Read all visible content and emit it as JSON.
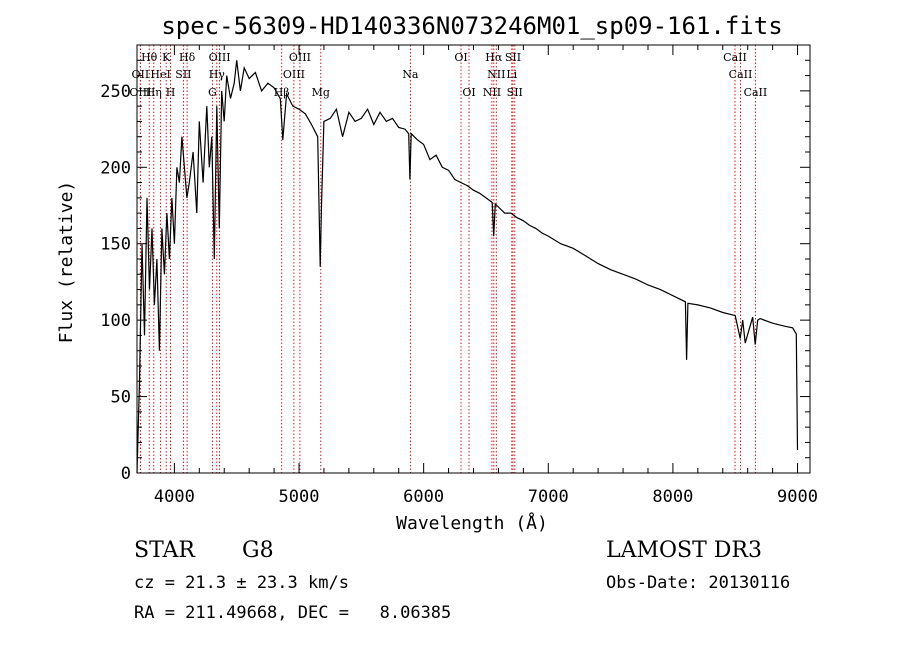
{
  "chart_data": {
    "type": "line",
    "title": "spec-56309-HD140336N073246M01_sp09-161.fits",
    "xlabel": "Wavelength (Å)",
    "ylabel": "Flux (relative)",
    "xlim": [
      3700,
      9100
    ],
    "ylim": [
      0,
      280
    ],
    "xticks": [
      4000,
      5000,
      6000,
      7000,
      8000,
      9000
    ],
    "yticks": [
      0,
      50,
      100,
      150,
      200,
      250
    ],
    "series": [
      {
        "name": "flux",
        "x": [
          3700,
          3720,
          3740,
          3760,
          3780,
          3800,
          3820,
          3840,
          3860,
          3880,
          3900,
          3920,
          3940,
          3960,
          3980,
          4000,
          4020,
          4040,
          4060,
          4080,
          4100,
          4120,
          4150,
          4180,
          4200,
          4230,
          4260,
          4280,
          4300,
          4320,
          4340,
          4360,
          4380,
          4400,
          4420,
          4450,
          4480,
          4500,
          4530,
          4560,
          4600,
          4650,
          4700,
          4750,
          4800,
          4850,
          4870,
          4900,
          4950,
          5000,
          5050,
          5100,
          5150,
          5170,
          5180,
          5200,
          5250,
          5300,
          5350,
          5400,
          5450,
          5500,
          5550,
          5600,
          5650,
          5700,
          5750,
          5800,
          5850,
          5880,
          5890,
          5900,
          5950,
          6000,
          6050,
          6100,
          6150,
          6200,
          6250,
          6300,
          6350,
          6400,
          6450,
          6500,
          6550,
          6562,
          6575,
          6600,
          6650,
          6700,
          6750,
          6800,
          6850,
          6900,
          6950,
          7000,
          7100,
          7200,
          7300,
          7400,
          7500,
          7600,
          7700,
          7800,
          7900,
          8000,
          8100,
          8110,
          8120,
          8200,
          8300,
          8400,
          8500,
          8540,
          8560,
          8580,
          8640,
          8660,
          8680,
          8700,
          8800,
          8900,
          8960,
          8990,
          9000
        ],
        "y": [
          0,
          60,
          150,
          90,
          180,
          120,
          160,
          110,
          140,
          80,
          160,
          130,
          170,
          140,
          180,
          150,
          200,
          190,
          220,
          200,
          180,
          190,
          210,
          170,
          230,
          190,
          240,
          200,
          220,
          140,
          240,
          160,
          250,
          230,
          260,
          245,
          255,
          270,
          250,
          265,
          258,
          262,
          250,
          255,
          252,
          245,
          218,
          248,
          240,
          238,
          235,
          228,
          220,
          135,
          175,
          230,
          232,
          238,
          220,
          236,
          230,
          232,
          238,
          228,
          236,
          230,
          232,
          226,
          225,
          222,
          192,
          222,
          218,
          215,
          205,
          208,
          200,
          198,
          192,
          190,
          188,
          185,
          183,
          180,
          177,
          155,
          176,
          174,
          170,
          170,
          167,
          165,
          162,
          160,
          157,
          155,
          150,
          147,
          142,
          137,
          133,
          130,
          127,
          123,
          120,
          116,
          112,
          74,
          111,
          110,
          108,
          105,
          103,
          88,
          100,
          85,
          102,
          84,
          100,
          101,
          98,
          96,
          95,
          91,
          15
        ]
      }
    ],
    "lines": [
      {
        "name": "Hθ",
        "wavelength": 3798
      },
      {
        "name": "OII",
        "wavelength": 3727
      },
      {
        "name": "OIII",
        "wavelength": 3727
      },
      {
        "name": "Hη",
        "wavelength": 3835
      },
      {
        "name": "HeI",
        "wavelength": 3889
      },
      {
        "name": "K",
        "wavelength": 3934
      },
      {
        "name": "H",
        "wavelength": 3969
      },
      {
        "name": "SII",
        "wavelength": 4072
      },
      {
        "name": "Hδ",
        "wavelength": 4102
      },
      {
        "name": "G",
        "wavelength": 4305
      },
      {
        "name": "Hγ",
        "wavelength": 4340
      },
      {
        "name": "OIII",
        "wavelength": 4363
      },
      {
        "name": "Hβ",
        "wavelength": 4861
      },
      {
        "name": "OIII",
        "wavelength": 4959
      },
      {
        "name": "OIII",
        "wavelength": 5007
      },
      {
        "name": "Mg",
        "wavelength": 5175
      },
      {
        "name": "Na",
        "wavelength": 5894
      },
      {
        "name": "OI",
        "wavelength": 6300
      },
      {
        "name": "OI",
        "wavelength": 6364
      },
      {
        "name": "NII",
        "wavelength": 6548
      },
      {
        "name": "Hα",
        "wavelength": 6563
      },
      {
        "name": "NII",
        "wavelength": 6583
      },
      {
        "name": "Li",
        "wavelength": 6707
      },
      {
        "name": "SII",
        "wavelength": 6717
      },
      {
        "name": "SII",
        "wavelength": 6731
      },
      {
        "name": "CaII",
        "wavelength": 8498
      },
      {
        "name": "CaII",
        "wavelength": 8542
      },
      {
        "name": "CaII",
        "wavelength": 8662
      }
    ],
    "label_tiers": [
      [
        {
          "text": "Hθ",
          "w": 3798
        },
        {
          "text": "K",
          "w": 3934
        },
        {
          "text": "Hδ",
          "w": 4102
        },
        {
          "text": "OIII",
          "w": 4363
        },
        {
          "text": "OIII",
          "w": 5007
        },
        {
          "text": "OI",
          "w": 6300
        },
        {
          "text": "Hα",
          "w": 6563
        },
        {
          "text": "SII",
          "w": 6717
        },
        {
          "text": "CaII",
          "w": 8498
        }
      ],
      [
        {
          "text": "OII",
          "w": 3727
        },
        {
          "text": "HeI",
          "w": 3889
        },
        {
          "text": "SII",
          "w": 4072
        },
        {
          "text": "Hγ",
          "w": 4340
        },
        {
          "text": "OIII",
          "w": 4959
        },
        {
          "text": "Na",
          "w": 5894
        },
        {
          "text": "NII",
          "w": 6583
        },
        {
          "text": "Li",
          "w": 6707
        },
        {
          "text": "CaII",
          "w": 8542
        }
      ],
      [
        {
          "text": "OIII",
          "w": 3727
        },
        {
          "text": "Hη",
          "w": 3835
        },
        {
          "text": "H",
          "w": 3969
        },
        {
          "text": "G",
          "w": 4305
        },
        {
          "text": "Hβ",
          "w": 4861
        },
        {
          "text": "Mg",
          "w": 5175
        },
        {
          "text": "OI",
          "w": 6364
        },
        {
          "text": "NII",
          "w": 6548
        },
        {
          "text": "SII",
          "w": 6731
        },
        {
          "text": "CaII",
          "w": 8662
        }
      ]
    ]
  },
  "info": {
    "object_type": "STAR",
    "subclass": "G8",
    "survey": "LAMOST DR3",
    "redshift": "cz = 21.3 ± 23.3 km/s",
    "obs_date": "Obs-Date: 20130116",
    "coords": "RA = 211.49668, DEC =   8.06385"
  },
  "colors": {
    "spectrum": "#000000",
    "line_markers": "#cc0000",
    "axes": "#000000"
  }
}
